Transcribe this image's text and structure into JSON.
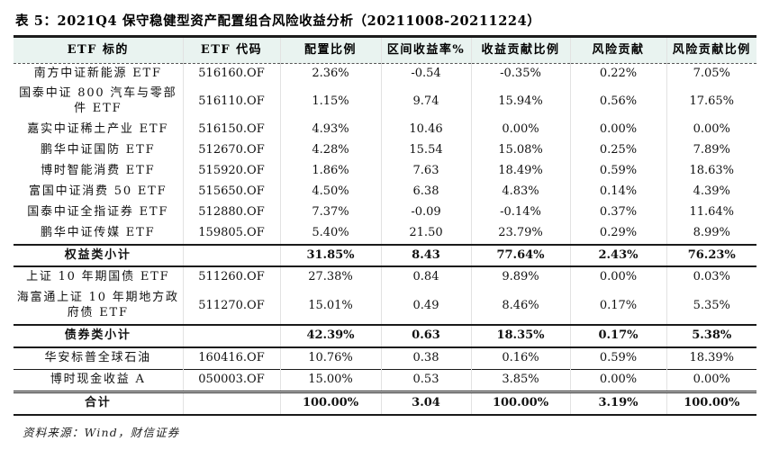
{
  "page": {
    "title": "表 5：2021Q4 保守稳健型资产配置组合风险收益分析（20211008-20211224）",
    "source_note": "资料来源：Wind，财信证券"
  },
  "colors": {
    "header_bg": "#e9f3f0",
    "title_rule": "#1c1c1c",
    "text": "#111111"
  },
  "table": {
    "headers": [
      "ETF 标的",
      "ETF 代码",
      "配置比例",
      "区间收益率%",
      "收益贡献比例",
      "风险贡献",
      "风险贡献比例"
    ],
    "rows": [
      {
        "name": "南方中证新能源 ETF",
        "code": "516160.OF",
        "alloc": "2.36%",
        "interval_return": "-0.54",
        "return_contrib": "-0.35%",
        "risk_contrib": "0.22%",
        "risk_contrib_ratio": "7.05%",
        "emphasis": false
      },
      {
        "name": "国泰中证 800 汽车与零部件 ETF",
        "code": "516110.OF",
        "alloc": "1.15%",
        "interval_return": "9.74",
        "return_contrib": "15.94%",
        "risk_contrib": "0.56%",
        "risk_contrib_ratio": "17.65%",
        "emphasis": false
      },
      {
        "name": "嘉实中证稀土产业 ETF",
        "code": "516150.OF",
        "alloc": "4.93%",
        "interval_return": "10.46",
        "return_contrib": "0.00%",
        "risk_contrib": "0.00%",
        "risk_contrib_ratio": "0.00%",
        "emphasis": false
      },
      {
        "name": "鹏华中证国防 ETF",
        "code": "512670.OF",
        "alloc": "4.28%",
        "interval_return": "15.54",
        "return_contrib": "15.08%",
        "risk_contrib": "0.25%",
        "risk_contrib_ratio": "7.89%",
        "emphasis": false
      },
      {
        "name": "博时智能消费 ETF",
        "code": "515920.OF",
        "alloc": "1.86%",
        "interval_return": "7.63",
        "return_contrib": "18.49%",
        "risk_contrib": "0.59%",
        "risk_contrib_ratio": "18.63%",
        "emphasis": false
      },
      {
        "name": "富国中证消费 50 ETF",
        "code": "515650.OF",
        "alloc": "4.50%",
        "interval_return": "6.38",
        "return_contrib": "4.83%",
        "risk_contrib": "0.14%",
        "risk_contrib_ratio": "4.39%",
        "emphasis": false
      },
      {
        "name": "国泰中证全指证券 ETF",
        "code": "512880.OF",
        "alloc": "7.37%",
        "interval_return": "-0.09",
        "return_contrib": "-0.14%",
        "risk_contrib": "0.37%",
        "risk_contrib_ratio": "11.64%",
        "emphasis": false
      },
      {
        "name": "鹏华中证传媒 ETF",
        "code": "159805.OF",
        "alloc": "5.40%",
        "interval_return": "21.50",
        "return_contrib": "23.79%",
        "risk_contrib": "0.29%",
        "risk_contrib_ratio": "8.99%",
        "emphasis": false
      },
      {
        "name": "权益类小计",
        "code": "",
        "alloc": "31.85%",
        "interval_return": "8.43",
        "return_contrib": "77.64%",
        "risk_contrib": "2.43%",
        "risk_contrib_ratio": "76.23%",
        "emphasis": true
      },
      {
        "name": "上证 10 年期国债 ETF",
        "code": "511260.OF",
        "alloc": "27.38%",
        "interval_return": "0.84",
        "return_contrib": "9.89%",
        "risk_contrib": "0.00%",
        "risk_contrib_ratio": "0.03%",
        "emphasis": false
      },
      {
        "name": "海富通上证 10 年期地方政府债 ETF",
        "code": "511270.OF",
        "alloc": "15.01%",
        "interval_return": "0.49",
        "return_contrib": "8.46%",
        "risk_contrib": "0.17%",
        "risk_contrib_ratio": "5.35%",
        "emphasis": false
      },
      {
        "name": "债券类小计",
        "code": "",
        "alloc": "42.39%",
        "interval_return": "0.63",
        "return_contrib": "18.35%",
        "risk_contrib": "0.17%",
        "risk_contrib_ratio": "5.38%",
        "emphasis": true
      },
      {
        "name": "华安标普全球石油",
        "code": "160416.OF",
        "alloc": "10.76%",
        "interval_return": "0.38",
        "return_contrib": "0.16%",
        "risk_contrib": "0.59%",
        "risk_contrib_ratio": "18.39%",
        "emphasis": false
      },
      {
        "name": "博时现金收益 A",
        "code": "050003.OF",
        "alloc": "15.00%",
        "interval_return": "0.53",
        "return_contrib": "3.85%",
        "risk_contrib": "0.00%",
        "risk_contrib_ratio": "0.00%",
        "emphasis": false
      },
      {
        "name": "合计",
        "code": "",
        "alloc": "100.00%",
        "interval_return": "3.04",
        "return_contrib": "100.00%",
        "risk_contrib": "3.19%",
        "risk_contrib_ratio": "100.00%",
        "emphasis": true
      }
    ]
  }
}
